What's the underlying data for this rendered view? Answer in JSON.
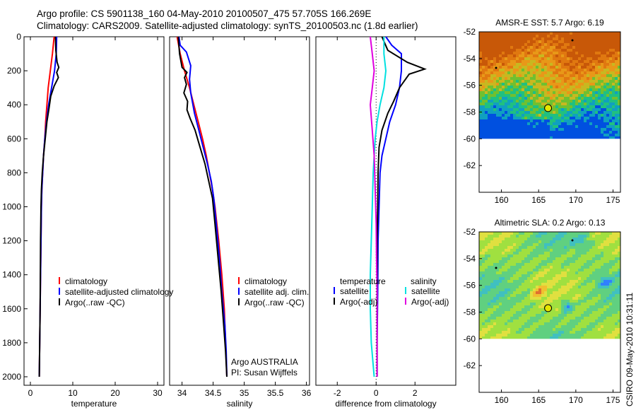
{
  "header": {
    "line1": "Argo profile: CS 5901138_160 04-May-2010 20100507_475 57.705S 166.269E",
    "line2": "Climatology: CARS2009. Satellite-adjusted climatology: synTS_20100503.nc (1.8d earlier)"
  },
  "signature": "CSIRO 09-May-2010 10:31:11",
  "colors": {
    "climatology": "#ff0000",
    "satellite": "#0000ff",
    "argo": "#000000",
    "sal_sat": "#00e0e0",
    "sal_argo": "#e000e0"
  },
  "chart_data": [
    {
      "type": "line",
      "id": "temperature",
      "xlabel": "temperature",
      "ylabel": "",
      "title": "",
      "xlim": [
        -1.5,
        31.5
      ],
      "ylim": [
        2050,
        0
      ],
      "xticks": [
        0,
        10,
        20,
        30
      ],
      "yticks": [
        0,
        200,
        400,
        600,
        800,
        1000,
        1200,
        1400,
        1600,
        1800,
        2000
      ],
      "series": [
        {
          "name": "climatology",
          "color": "#ff0000",
          "points": [
            [
              5.6,
              0
            ],
            [
              5.2,
              100
            ],
            [
              4.7,
              200
            ],
            [
              4.2,
              300
            ],
            [
              3.9,
              400
            ],
            [
              3.6,
              500
            ],
            [
              3.4,
              600
            ],
            [
              3.1,
              700
            ],
            [
              2.9,
              800
            ],
            [
              2.7,
              900
            ],
            [
              2.6,
              1000
            ],
            [
              2.5,
              1200
            ],
            [
              2.4,
              1400
            ],
            [
              2.3,
              1600
            ],
            [
              2.2,
              1800
            ],
            [
              2.1,
              2000
            ]
          ]
        },
        {
          "name": "satellite-adjusted climatology",
          "color": "#0000ff",
          "points": [
            [
              6.2,
              0
            ],
            [
              6.1,
              100
            ],
            [
              5.7,
              200
            ],
            [
              5.0,
              300
            ],
            [
              4.3,
              400
            ],
            [
              3.8,
              500
            ],
            [
              3.4,
              600
            ],
            [
              3.1,
              700
            ],
            [
              2.9,
              800
            ],
            [
              2.7,
              900
            ],
            [
              2.6,
              1000
            ],
            [
              2.5,
              1200
            ],
            [
              2.4,
              1400
            ],
            [
              2.3,
              1600
            ],
            [
              2.2,
              1800
            ],
            [
              2.1,
              2000
            ]
          ]
        },
        {
          "name": "Argo(..raw -QC)",
          "color": "#000000",
          "points": [
            [
              5.9,
              0
            ],
            [
              6.0,
              80
            ],
            [
              6.3,
              150
            ],
            [
              6.7,
              180
            ],
            [
              6.2,
              210
            ],
            [
              6.6,
              240
            ],
            [
              5.6,
              290
            ],
            [
              4.8,
              350
            ],
            [
              4.4,
              420
            ],
            [
              3.9,
              500
            ],
            [
              3.5,
              600
            ],
            [
              3.1,
              700
            ],
            [
              2.8,
              800
            ],
            [
              2.6,
              900
            ],
            [
              2.5,
              1000
            ],
            [
              2.4,
              1200
            ],
            [
              2.35,
              1400
            ],
            [
              2.3,
              1600
            ],
            [
              2.2,
              1800
            ],
            [
              2.1,
              2000
            ]
          ]
        }
      ]
    },
    {
      "type": "line",
      "id": "salinity",
      "xlabel": "salinity",
      "ylabel": "",
      "title": "",
      "xlim": [
        33.8,
        36.05
      ],
      "ylim": [
        2050,
        0
      ],
      "xticks": [
        34,
        34.5,
        35,
        35.5,
        36
      ],
      "yticks": [],
      "annotation": [
        "Argo AUSTRALIA",
        "PI: Susan Wijffels"
      ],
      "series": [
        {
          "name": "climatology",
          "color": "#ff0000",
          "points": [
            [
              33.92,
              0
            ],
            [
              33.97,
              100
            ],
            [
              34.04,
              200
            ],
            [
              34.12,
              300
            ],
            [
              34.19,
              400
            ],
            [
              34.26,
              500
            ],
            [
              34.33,
              600
            ],
            [
              34.39,
              700
            ],
            [
              34.44,
              800
            ],
            [
              34.49,
              900
            ],
            [
              34.53,
              1000
            ],
            [
              34.59,
              1200
            ],
            [
              34.64,
              1400
            ],
            [
              34.68,
              1600
            ],
            [
              34.7,
              1800
            ],
            [
              34.72,
              2000
            ]
          ]
        },
        {
          "name": "satellite adj. clim.",
          "color": "#0000ff",
          "points": [
            [
              33.95,
              0
            ],
            [
              33.97,
              50
            ],
            [
              34.07,
              90
            ],
            [
              34.14,
              170
            ],
            [
              34.12,
              250
            ],
            [
              34.14,
              330
            ],
            [
              34.2,
              450
            ],
            [
              34.27,
              550
            ],
            [
              34.34,
              650
            ],
            [
              34.41,
              750
            ],
            [
              34.47,
              850
            ],
            [
              34.51,
              950
            ],
            [
              34.55,
              1100
            ],
            [
              34.6,
              1300
            ],
            [
              34.64,
              1500
            ],
            [
              34.69,
              1700
            ],
            [
              34.71,
              1850
            ],
            [
              34.72,
              2000
            ]
          ]
        },
        {
          "name": "Argo(..raw -QC)",
          "color": "#000000",
          "points": [
            [
              33.94,
              0
            ],
            [
              33.96,
              100
            ],
            [
              34.0,
              180
            ],
            [
              34.08,
              210
            ],
            [
              34.04,
              240
            ],
            [
              34.07,
              280
            ],
            [
              34.03,
              330
            ],
            [
              34.09,
              380
            ],
            [
              34.08,
              430
            ],
            [
              34.13,
              480
            ],
            [
              34.21,
              550
            ],
            [
              34.29,
              650
            ],
            [
              34.37,
              750
            ],
            [
              34.43,
              850
            ],
            [
              34.49,
              950
            ],
            [
              34.53,
              1100
            ],
            [
              34.58,
              1300
            ],
            [
              34.63,
              1500
            ],
            [
              34.67,
              1700
            ],
            [
              34.7,
              1850
            ],
            [
              34.72,
              2000
            ]
          ]
        }
      ]
    },
    {
      "type": "line",
      "id": "difference",
      "xlabel": "difference from climatology",
      "ylabel": "",
      "title": "",
      "xlim": [
        -3.1,
        4.1
      ],
      "ylim": [
        2050,
        0
      ],
      "xticks": [
        -2,
        0,
        2
      ],
      "yticks": [],
      "legend_headers": [
        "temperature",
        "salinity"
      ],
      "series": [
        {
          "name": "satellite",
          "group": "temperature",
          "color": "#0000ff",
          "points": [
            [
              0.5,
              0
            ],
            [
              0.8,
              50
            ],
            [
              1.3,
              100
            ],
            [
              1.3,
              200
            ],
            [
              1.2,
              300
            ],
            [
              1.0,
              400
            ],
            [
              0.7,
              500
            ],
            [
              0.5,
              600
            ],
            [
              0.3,
              700
            ],
            [
              0.2,
              800
            ],
            [
              0.15,
              1000
            ],
            [
              0.1,
              1200
            ],
            [
              0.08,
              1500
            ],
            [
              0.05,
              1800
            ],
            [
              0.05,
              2000
            ]
          ]
        },
        {
          "name": "Argo(-adj)",
          "group": "temperature",
          "color": "#000000",
          "points": [
            [
              0.3,
              0
            ],
            [
              0.6,
              80
            ],
            [
              1.6,
              150
            ],
            [
              2.5,
              190
            ],
            [
              1.7,
              220
            ],
            [
              1.2,
              300
            ],
            [
              0.9,
              380
            ],
            [
              0.6,
              450
            ],
            [
              0.3,
              550
            ],
            [
              0.15,
              650
            ],
            [
              0.1,
              800
            ],
            [
              0.08,
              1000
            ],
            [
              0.05,
              1200
            ],
            [
              0.05,
              1500
            ],
            [
              0.05,
              1800
            ],
            [
              0.05,
              2000
            ]
          ]
        },
        {
          "name": "satellite",
          "group": "salinity",
          "color": "#00e0e0",
          "points": [
            [
              0.4,
              0
            ],
            [
              0.4,
              100
            ],
            [
              0.5,
              200
            ],
            [
              0.4,
              300
            ],
            [
              0.2,
              400
            ],
            [
              0.05,
              500
            ],
            [
              -0.05,
              600
            ],
            [
              -0.1,
              700
            ],
            [
              -0.15,
              800
            ],
            [
              -0.2,
              1000
            ],
            [
              -0.25,
              1200
            ],
            [
              -0.3,
              1400
            ],
            [
              -0.3,
              1600
            ],
            [
              -0.25,
              1800
            ],
            [
              -0.1,
              2000
            ]
          ]
        },
        {
          "name": "Argo(-adj)",
          "group": "salinity",
          "color": "#e000e0",
          "points": [
            [
              -0.3,
              0
            ],
            [
              -0.2,
              100
            ],
            [
              -0.1,
              200
            ],
            [
              -0.2,
              300
            ],
            [
              -0.3,
              400
            ],
            [
              -0.2,
              550
            ],
            [
              -0.1,
              700
            ],
            [
              -0.05,
              900
            ],
            [
              0.0,
              1100
            ],
            [
              0.02,
              1300
            ],
            [
              0.05,
              1500
            ],
            [
              0.05,
              1800
            ],
            [
              0.05,
              2000
            ]
          ]
        }
      ]
    },
    {
      "type": "heatmap",
      "id": "sst-map",
      "title": "AMSR-E SST: 5.7 Argo: 6.19",
      "xlim": [
        157,
        176
      ],
      "ylim": [
        -64,
        -52
      ],
      "xticks": [
        160,
        165,
        170,
        175
      ],
      "yticks": [
        -52,
        -54,
        -56,
        -58,
        -60,
        -62
      ],
      "data_extent_lat": [
        -60,
        -52
      ],
      "profile_position": [
        166.269,
        -57.705
      ],
      "colors": [
        "#0050e0",
        "#10a0c0",
        "#20c080",
        "#70c030",
        "#c8b820",
        "#e89818",
        "#e07810",
        "#c85808"
      ]
    },
    {
      "type": "heatmap",
      "id": "sla-map",
      "title": "Altimetric SLA: 0.2 Argo: 0.13",
      "xlim": [
        157,
        176
      ],
      "ylim": [
        -64,
        -52
      ],
      "xticks": [
        160,
        165,
        170,
        175
      ],
      "yticks": [
        -52,
        -54,
        -56,
        -58,
        -60,
        -62
      ],
      "data_extent_lat": [
        -60,
        -52
      ],
      "profile_position": [
        166.269,
        -57.705
      ],
      "colors": [
        "#3080ff",
        "#40c0c0",
        "#60d080",
        "#a0e040",
        "#e0e040",
        "#f0c030",
        "#e07030"
      ]
    }
  ]
}
